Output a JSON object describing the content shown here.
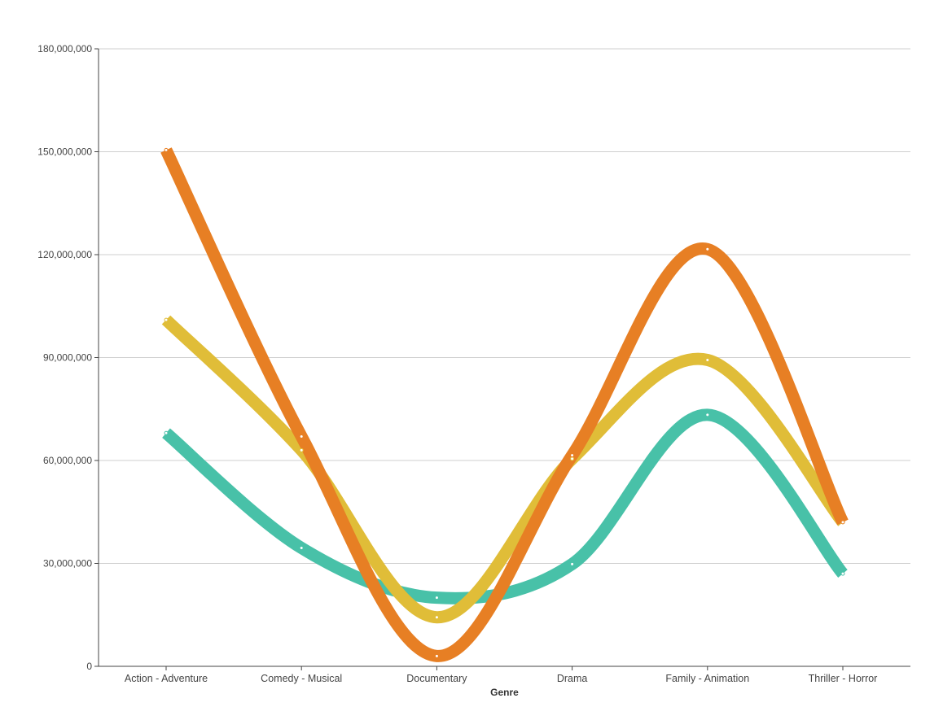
{
  "chart_data": {
    "type": "line",
    "interpolation": "smooth",
    "xlabel": "Genre",
    "ylabel": "",
    "categories": [
      "Action - Adventure",
      "Comedy - Musical",
      "Documentary",
      "Drama",
      "Family - Animation",
      "Thriller - Horror"
    ],
    "ylim": [
      0,
      180000000
    ],
    "y_ticks": [
      0,
      30000000,
      60000000,
      90000000,
      120000000,
      150000000,
      180000000
    ],
    "y_tick_labels": [
      "0",
      "30,000,000",
      "60,000,000",
      "90,000,000",
      "120,000,000",
      "150,000,000",
      "180,000,000"
    ],
    "grid": true,
    "legend": "none",
    "series": [
      {
        "color": "#48C1A8",
        "values": [
          68000000,
          34500000,
          20000000,
          29800000,
          73300000,
          27000000
        ]
      },
      {
        "color": "#E0BD38",
        "values": [
          101000000,
          63000000,
          14300000,
          60500000,
          89300000,
          42000000
        ]
      },
      {
        "color": "#E77F24",
        "values": [
          150500000,
          67000000,
          3000000,
          61500000,
          121600000,
          42000000
        ]
      }
    ]
  }
}
